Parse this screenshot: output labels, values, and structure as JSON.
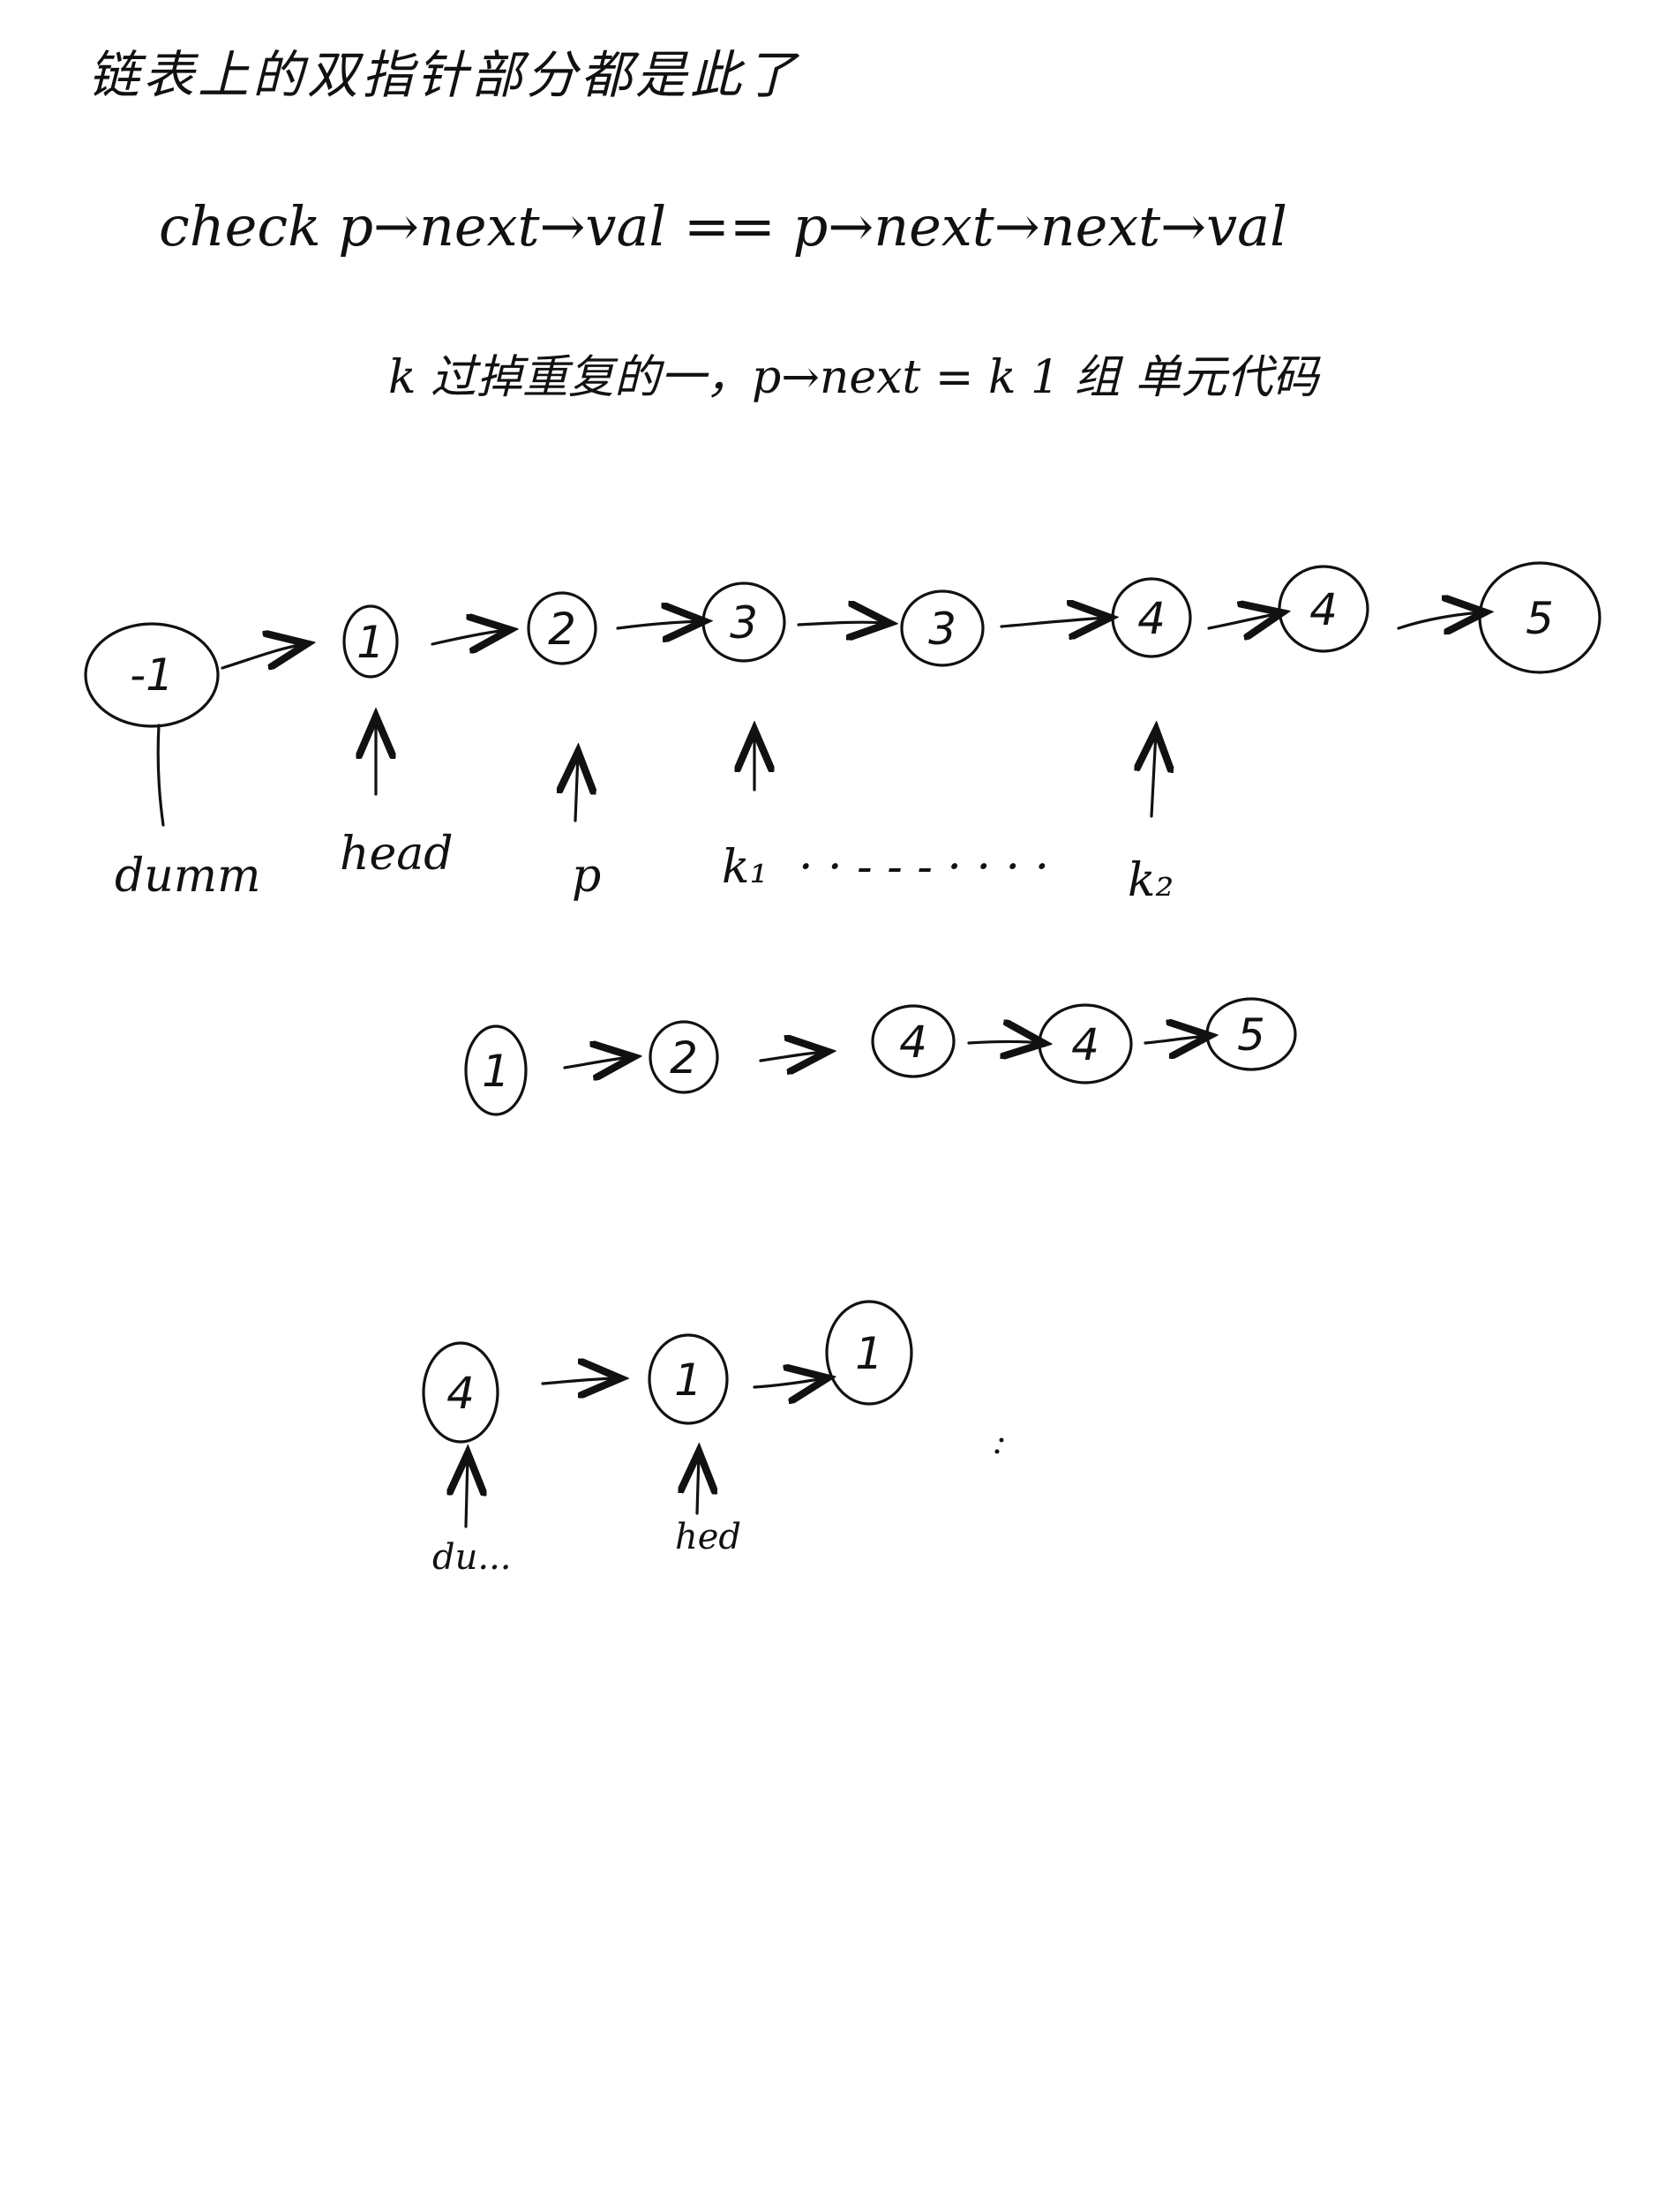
{
  "header": {
    "title": "链表上的双指针部分都是此了",
    "check_line": "check  p→next→val == p→next→next→val",
    "note_line": "k 过掉重复的一，p→next = k  1 组 单元代码"
  },
  "list_one": {
    "nodes": [
      "-1",
      "1",
      "2",
      "3",
      "3",
      "4",
      "4",
      "5"
    ],
    "labels": {
      "dummy": "dumm",
      "head": "head",
      "p": "p",
      "k1": "k₁",
      "dots": "· · - - - · · · ·",
      "k2": "k₂"
    }
  },
  "list_two": {
    "nodes": [
      "1",
      "2",
      "4",
      "4",
      "5"
    ]
  },
  "list_three": {
    "nodes": [
      "4",
      "1",
      "1"
    ],
    "labels": {
      "dummy": "du...",
      "head": "hed"
    }
  }
}
